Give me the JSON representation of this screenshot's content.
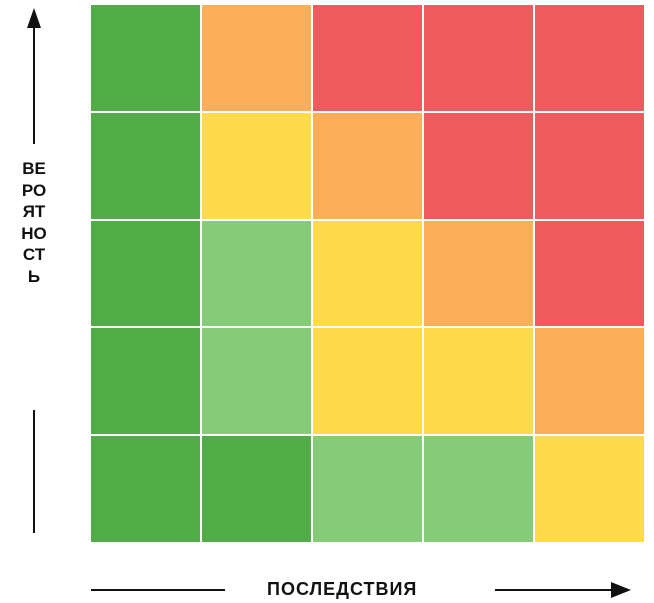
{
  "axes": {
    "y_label": "ВЕРОЯТНОСТЬ",
    "x_label": "ПОСЛЕДСТВИЯ"
  },
  "colors": {
    "dark_green": "#52ad48",
    "light_green": "#86cb78",
    "yellow": "#ffdb4c",
    "orange": "#fdae5b",
    "red": "#ed5b5e"
  },
  "matrix": [
    [
      "dark_green",
      "orange",
      "red",
      "red",
      "red"
    ],
    [
      "dark_green",
      "yellow",
      "orange",
      "red",
      "red"
    ],
    [
      "dark_green",
      "light_green",
      "yellow",
      "orange",
      "red"
    ],
    [
      "dark_green",
      "light_green",
      "yellow",
      "yellow",
      "orange"
    ],
    [
      "dark_green",
      "dark_green",
      "light_green",
      "light_green",
      "yellow"
    ]
  ]
}
